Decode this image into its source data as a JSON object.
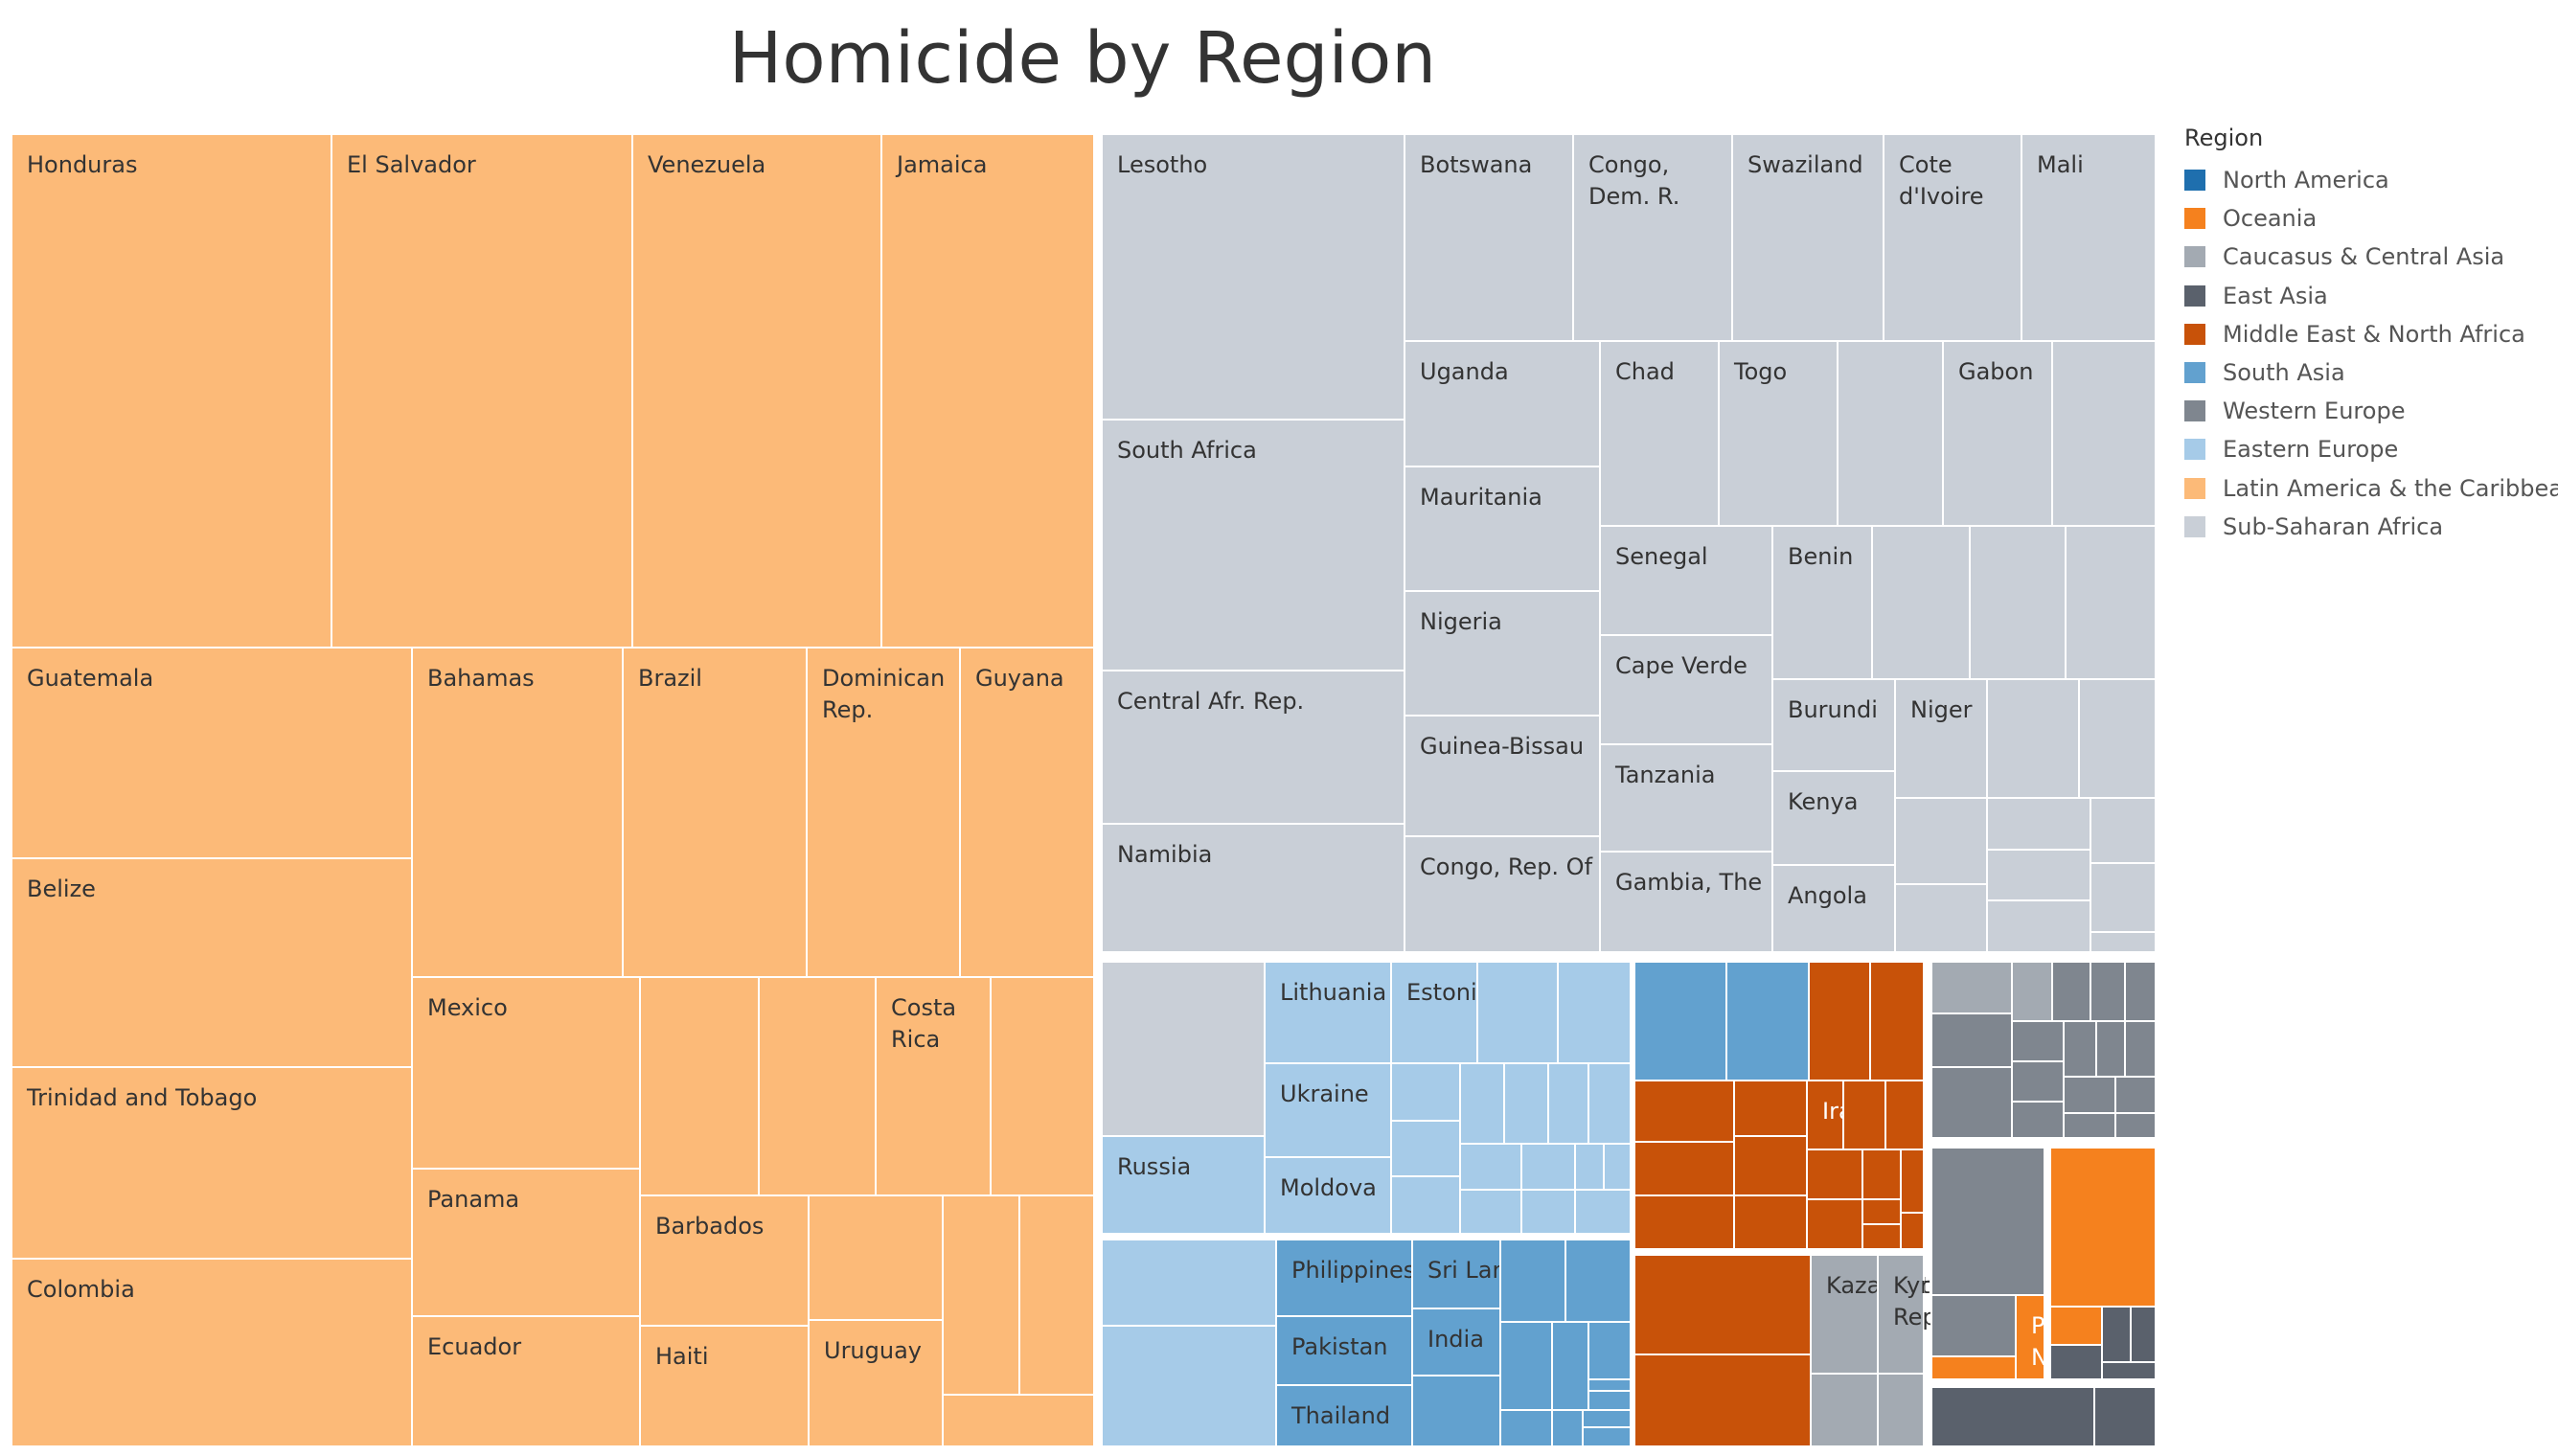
{
  "chart_data": {
    "type": "treemap",
    "title": "Homicide by Region",
    "legend": {
      "title": "Region",
      "placement": "right",
      "items": [
        {
          "label": "North America",
          "color": "#1f6fae"
        },
        {
          "label": "Oceania",
          "color": "#f5811e"
        },
        {
          "label": "Caucasus & Central Asia",
          "color": "#a3aab2"
        },
        {
          "label": "East Asia",
          "color": "#5a616c"
        },
        {
          "label": "Middle East & North Africa",
          "color": "#c85209"
        },
        {
          "label": "South Asia",
          "color": "#62a1cf"
        },
        {
          "label": "Western Europe",
          "color": "#7f868f"
        },
        {
          "label": "Eastern Europe",
          "color": "#a6cbe8"
        },
        {
          "label": "Latin America & the Caribbean",
          "color": "#fcba78"
        },
        {
          "label": "Sub-Saharan Africa",
          "color": "#c9cfd7"
        }
      ]
    },
    "cells": [
      {
        "region": "Latin America & the Caribbean",
        "label": "Honduras"
      },
      {
        "region": "Latin America & the Caribbean",
        "label": "El Salvador"
      },
      {
        "region": "Latin America & the Caribbean",
        "label": "Venezuela"
      },
      {
        "region": "Latin America & the Caribbean",
        "label": "Jamaica"
      },
      {
        "region": "Latin America & the Caribbean",
        "label": "Guatemala"
      },
      {
        "region": "Latin America & the Caribbean",
        "label": "Belize"
      },
      {
        "region": "Latin America & the Caribbean",
        "label": "Trinidad and Tobago"
      },
      {
        "region": "Latin America & the Caribbean",
        "label": "Colombia"
      },
      {
        "region": "Latin America & the Caribbean",
        "label": "Bahamas"
      },
      {
        "region": "Latin America & the Caribbean",
        "label": "Brazil"
      },
      {
        "region": "Latin America & the Caribbean",
        "label": "Dominican\nRep."
      },
      {
        "region": "Latin America & the Caribbean",
        "label": "Guyana"
      },
      {
        "region": "Latin America & the Caribbean",
        "label": "Mexico"
      },
      {
        "region": "Latin America & the Caribbean",
        "label": "Panama"
      },
      {
        "region": "Latin America & the Caribbean",
        "label": "Ecuador"
      },
      {
        "region": "Latin America & the Caribbean",
        "label": ""
      },
      {
        "region": "Latin America & the Caribbean",
        "label": ""
      },
      {
        "region": "Latin America & the Caribbean",
        "label": "Costa\nRica"
      },
      {
        "region": "Latin America & the Caribbean",
        "label": ""
      },
      {
        "region": "Latin America & the Caribbean",
        "label": "Barbados"
      },
      {
        "region": "Latin America & the Caribbean",
        "label": "Haiti"
      },
      {
        "region": "Latin America & the Caribbean",
        "label": ""
      },
      {
        "region": "Latin America & the Caribbean",
        "label": "Uruguay"
      },
      {
        "region": "Latin America & the Caribbean",
        "label": ""
      },
      {
        "region": "Latin America & the Caribbean",
        "label": ""
      },
      {
        "region": "Latin America & the Caribbean",
        "label": ""
      },
      {
        "region": "Sub-Saharan Africa",
        "label": "Lesotho"
      },
      {
        "region": "Sub-Saharan Africa",
        "label": "South Africa"
      },
      {
        "region": "Sub-Saharan Africa",
        "label": "Central Afr. Rep."
      },
      {
        "region": "Sub-Saharan Africa",
        "label": "Namibia"
      },
      {
        "region": "Sub-Saharan Africa",
        "label": "Botswana"
      },
      {
        "region": "Sub-Saharan Africa",
        "label": "Congo,\nDem. R."
      },
      {
        "region": "Sub-Saharan Africa",
        "label": "Swaziland"
      },
      {
        "region": "Sub-Saharan Africa",
        "label": "Cote\nd'Ivoire"
      },
      {
        "region": "Sub-Saharan Africa",
        "label": "Mali"
      },
      {
        "region": "Sub-Saharan Africa",
        "label": "Uganda"
      },
      {
        "region": "Sub-Saharan Africa",
        "label": "Mauritania"
      },
      {
        "region": "Sub-Saharan Africa",
        "label": "Nigeria"
      },
      {
        "region": "Sub-Saharan Africa",
        "label": "Guinea-Bissau"
      },
      {
        "region": "Sub-Saharan Africa",
        "label": "Congo, Rep. Of"
      },
      {
        "region": "Sub-Saharan Africa",
        "label": "Chad"
      },
      {
        "region": "Sub-Saharan Africa",
        "label": "Togo"
      },
      {
        "region": "Sub-Saharan Africa",
        "label": ""
      },
      {
        "region": "Sub-Saharan Africa",
        "label": "Gabon"
      },
      {
        "region": "Sub-Saharan Africa",
        "label": ""
      },
      {
        "region": "Sub-Saharan Africa",
        "label": "Senegal"
      },
      {
        "region": "Sub-Saharan Africa",
        "label": "Cape Verde"
      },
      {
        "region": "Sub-Saharan Africa",
        "label": "Tanzania"
      },
      {
        "region": "Sub-Saharan Africa",
        "label": "Gambia, The"
      },
      {
        "region": "Sub-Saharan Africa",
        "label": "Benin"
      },
      {
        "region": "Sub-Saharan Africa",
        "label": ""
      },
      {
        "region": "Sub-Saharan Africa",
        "label": ""
      },
      {
        "region": "Sub-Saharan Africa",
        "label": ""
      },
      {
        "region": "Sub-Saharan Africa",
        "label": "Burundi"
      },
      {
        "region": "Sub-Saharan Africa",
        "label": "Niger"
      },
      {
        "region": "Sub-Saharan Africa",
        "label": ""
      },
      {
        "region": "Sub-Saharan Africa",
        "label": ""
      },
      {
        "region": "Sub-Saharan Africa",
        "label": "Kenya"
      },
      {
        "region": "Sub-Saharan Africa",
        "label": "Angola"
      },
      {
        "region": "Sub-Saharan Africa",
        "label": ""
      },
      {
        "region": "Sub-Saharan Africa",
        "label": ""
      },
      {
        "region": "Sub-Saharan Africa",
        "label": ""
      },
      {
        "region": "Sub-Saharan Africa",
        "label": ""
      },
      {
        "region": "Sub-Saharan Africa",
        "label": ""
      },
      {
        "region": "Sub-Saharan Africa",
        "label": ""
      },
      {
        "region": "Sub-Saharan Africa",
        "label": ""
      },
      {
        "region": "Sub-Saharan Africa",
        "label": ""
      },
      {
        "region": "Sub-Saharan Africa",
        "label": ""
      },
      {
        "region": "Eastern Europe",
        "label": "Russia"
      },
      {
        "region": "Eastern Europe",
        "label": "Lithuania"
      },
      {
        "region": "Eastern Europe",
        "label": "Ukraine"
      },
      {
        "region": "Eastern Europe",
        "label": "Moldova"
      },
      {
        "region": "Eastern Europe",
        "label": "Estonia"
      },
      {
        "region": "Eastern Europe",
        "label": ""
      },
      {
        "region": "Eastern Europe",
        "label": ""
      },
      {
        "region": "Eastern Europe",
        "label": ""
      },
      {
        "region": "Eastern Europe",
        "label": ""
      },
      {
        "region": "Eastern Europe",
        "label": ""
      },
      {
        "region": "Eastern Europe",
        "label": ""
      },
      {
        "region": "Eastern Europe",
        "label": ""
      },
      {
        "region": "Eastern Europe",
        "label": ""
      },
      {
        "region": "Eastern Europe",
        "label": ""
      },
      {
        "region": "Eastern Europe",
        "label": ""
      },
      {
        "region": "Eastern Europe",
        "label": ""
      },
      {
        "region": "Eastern Europe",
        "label": ""
      },
      {
        "region": "Eastern Europe",
        "label": ""
      },
      {
        "region": "Eastern Europe",
        "label": ""
      },
      {
        "region": "Eastern Europe",
        "label": ""
      },
      {
        "region": "Eastern Europe",
        "label": ""
      },
      {
        "region": "Eastern Europe",
        "label": ""
      },
      {
        "region": "Eastern Europe",
        "label": ""
      },
      {
        "region": "South Asia",
        "label": "Philippines"
      },
      {
        "region": "South Asia",
        "label": "Pakistan"
      },
      {
        "region": "South Asia",
        "label": "Thailand"
      },
      {
        "region": "South Asia",
        "label": "Sri Lanka"
      },
      {
        "region": "South Asia",
        "label": "India"
      },
      {
        "region": "South Asia",
        "label": ""
      },
      {
        "region": "South Asia",
        "label": ""
      },
      {
        "region": "South Asia",
        "label": ""
      },
      {
        "region": "South Asia",
        "label": ""
      },
      {
        "region": "South Asia",
        "label": ""
      },
      {
        "region": "South Asia",
        "label": ""
      },
      {
        "region": "South Asia",
        "label": ""
      },
      {
        "region": "South Asia",
        "label": ""
      },
      {
        "region": "South Asia",
        "label": ""
      },
      {
        "region": "South Asia",
        "label": ""
      },
      {
        "region": "South Asia",
        "label": ""
      },
      {
        "region": "South Asia",
        "label": ""
      },
      {
        "region": "South Asia",
        "label": ""
      },
      {
        "region": "South Asia",
        "label": ""
      },
      {
        "region": "Middle East & North Africa",
        "label": ""
      },
      {
        "region": "Middle East & North Africa",
        "label": ""
      },
      {
        "region": "Middle East & North Africa",
        "label": ""
      },
      {
        "region": "Middle East & North Africa",
        "label": ""
      },
      {
        "region": "Middle East & North Africa",
        "label": "Iran"
      },
      {
        "region": "Middle East & North Africa",
        "label": ""
      },
      {
        "region": "Middle East & North Africa",
        "label": ""
      },
      {
        "region": "Middle East & North Africa",
        "label": ""
      },
      {
        "region": "Middle East & North Africa",
        "label": ""
      },
      {
        "region": "Middle East & North Africa",
        "label": ""
      },
      {
        "region": "Middle East & North Africa",
        "label": ""
      },
      {
        "region": "Middle East & North Africa",
        "label": ""
      },
      {
        "region": "Middle East & North Africa",
        "label": ""
      },
      {
        "region": "Middle East & North Africa",
        "label": ""
      },
      {
        "region": "Middle East & North Africa",
        "label": ""
      },
      {
        "region": "Middle East & North Africa",
        "label": ""
      },
      {
        "region": "Middle East & North Africa",
        "label": ""
      },
      {
        "region": "Middle East & North Africa",
        "label": ""
      },
      {
        "region": "Middle East & North Africa",
        "label": ""
      },
      {
        "region": "Middle East & North Africa",
        "label": ""
      },
      {
        "region": "Caucasus & Central Asia",
        "label": "Kazakhstan"
      },
      {
        "region": "Caucasus & Central Asia",
        "label": "Kyrgyz\nRepublic"
      },
      {
        "region": "Caucasus & Central Asia",
        "label": ""
      },
      {
        "region": "Caucasus & Central Asia",
        "label": ""
      },
      {
        "region": "Caucasus & Central Asia",
        "label": ""
      },
      {
        "region": "Caucasus & Central Asia",
        "label": ""
      },
      {
        "region": "Western Europe",
        "label": ""
      },
      {
        "region": "Western Europe",
        "label": ""
      },
      {
        "region": "Western Europe",
        "label": ""
      },
      {
        "region": "Western Europe",
        "label": ""
      },
      {
        "region": "Western Europe",
        "label": ""
      },
      {
        "region": "Western Europe",
        "label": ""
      },
      {
        "region": "Western Europe",
        "label": ""
      },
      {
        "region": "Western Europe",
        "label": ""
      },
      {
        "region": "Western Europe",
        "label": ""
      },
      {
        "region": "Western Europe",
        "label": ""
      },
      {
        "region": "Western Europe",
        "label": ""
      },
      {
        "region": "Western Europe",
        "label": ""
      },
      {
        "region": "Western Europe",
        "label": ""
      },
      {
        "region": "Western Europe",
        "label": ""
      },
      {
        "region": "Western Europe",
        "label": ""
      },
      {
        "region": "Western Europe",
        "label": ""
      },
      {
        "region": "Western Europe",
        "label": ""
      },
      {
        "region": "Western Europe",
        "label": ""
      },
      {
        "region": "Oceania",
        "label": "Pap.\nNew\nGuinea"
      },
      {
        "region": "Oceania",
        "label": ""
      },
      {
        "region": "Oceania",
        "label": ""
      },
      {
        "region": "Oceania",
        "label": ""
      },
      {
        "region": "East Asia",
        "label": ""
      },
      {
        "region": "East Asia",
        "label": ""
      },
      {
        "region": "East Asia",
        "label": ""
      },
      {
        "region": "East Asia",
        "label": ""
      },
      {
        "region": "East Asia",
        "label": ""
      },
      {
        "region": "East Asia",
        "label": ""
      },
      {
        "region": "North America",
        "label": ""
      },
      {
        "region": "North America",
        "label": ""
      }
    ]
  }
}
